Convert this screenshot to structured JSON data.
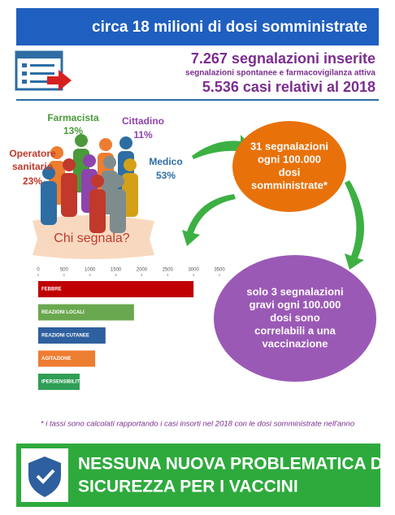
{
  "header": {
    "title": "circa 18 milioni di dosi somministrate"
  },
  "stats": {
    "reports": "7.267 segnalazioni inserite",
    "reports_note": "segnalazioni spontanee e farmacovigilanza attiva",
    "cases": "5.536 casi relativi al 2018"
  },
  "who_reports": {
    "caption": "Chi segnala?",
    "groups": [
      {
        "label": "Farmacista",
        "share": "13%",
        "color": "#4a9a3a"
      },
      {
        "label": "Cittadino",
        "share": "11%",
        "color": "#8e44ad"
      },
      {
        "label": "Operatore sanitario",
        "share": "23%",
        "color": "#c0392b"
      },
      {
        "label": "Medico",
        "share": "53%",
        "color": "#2e6da4"
      }
    ]
  },
  "bubbles": [
    {
      "lines": [
        "31 segnalazioni",
        "ogni 100.000",
        "dosi",
        "somministrate*"
      ]
    },
    {
      "lines": [
        "solo 3 segnalazioni",
        "gravi ogni 100.000",
        "dosi sono",
        "correlabili a una",
        "vaccinazione"
      ]
    }
  ],
  "chart_data": {
    "type": "bar",
    "orientation": "horizontal",
    "categories": [
      "FEBBRE",
      "REAZIONI LOCALI",
      "REAZIONI CUTANEE",
      "AGITAZIONE",
      "IPERSENSIBILITÀ"
    ],
    "values": [
      3000,
      1850,
      1300,
      1100,
      800
    ],
    "colors": [
      "#c00000",
      "#6aa84f",
      "#2e5f9e",
      "#ed7d31",
      "#2f9e55"
    ],
    "xlim": [
      0,
      3500
    ],
    "xticks": [
      0,
      500,
      1000,
      1500,
      2000,
      2500,
      3000,
      3500
    ]
  },
  "footnote": "* i tassi sono calcolati rapportando i casi insorti nel 2018 con le dosi somministrate nell'anno",
  "banner": {
    "lines": [
      "NESSUNA NUOVA PROBLEMATICA DI",
      "SICUREZZA PER I VACCINI"
    ]
  }
}
